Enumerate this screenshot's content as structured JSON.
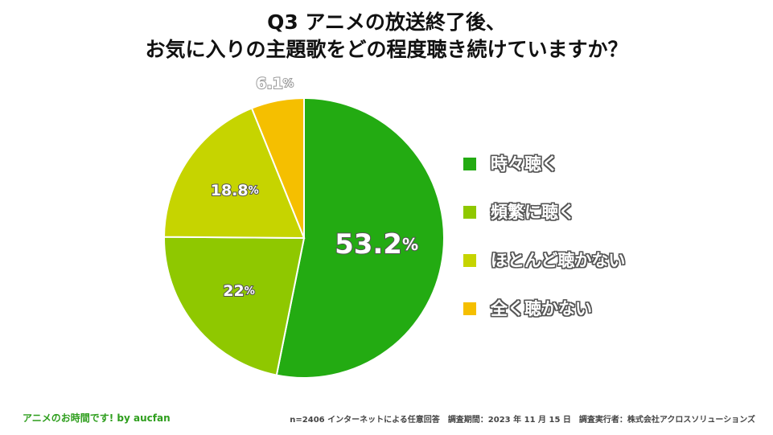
{
  "title_line1": "Q3 アニメの放送終了後、",
  "title_line2": "お気に入りの主題歌をどの程度聴き続けていますか？",
  "chart_data": {
    "type": "pie",
    "title": "Q3 アニメの放送終了後、お気に入りの主題歌をどの程度聴き続けていますか？",
    "categories": [
      "時々聴く",
      "頻繁に聴く",
      "ほとんど聴かない",
      "全く聴かない"
    ],
    "values": [
      53.2,
      22,
      18.8,
      6.1
    ],
    "labels": [
      "53.2",
      "22",
      "18.8",
      "6.1"
    ],
    "unit": "%",
    "colors": [
      "#23ab12",
      "#8fc800",
      "#c6d400",
      "#f5bf00"
    ],
    "start": "12 o'clock",
    "direction": "clockwise",
    "legend_position": "right"
  },
  "legend": [
    {
      "label": "時々聴く",
      "color": "#23ab12"
    },
    {
      "label": "頻繁に聴く",
      "color": "#8fc800"
    },
    {
      "label": "ほとんど聴かない",
      "color": "#c6d400"
    },
    {
      "label": "全く聴かない",
      "color": "#f5bf00"
    }
  ],
  "footer": {
    "brand": "アニメのお時間です! by aucfan",
    "sample": "n=2406 インターネットによる任意回答",
    "period": "調査期間：2023 年 11 月 15 日",
    "executor": "調査実行者：株式会社アクロスソリューションズ"
  }
}
